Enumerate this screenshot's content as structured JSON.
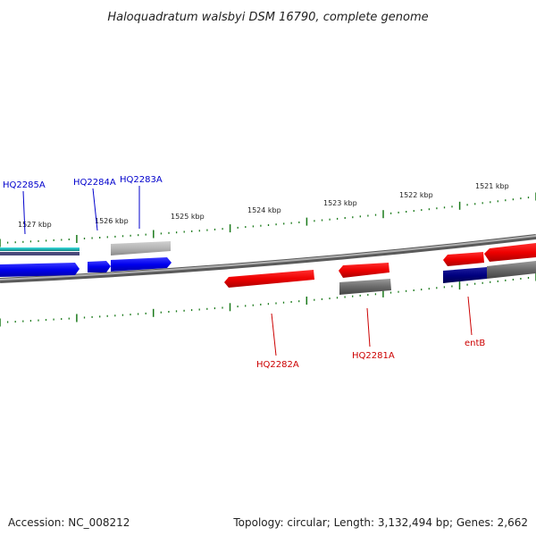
{
  "title": "Haloquadratum walsbyi DSM 16790, complete genome",
  "footer": {
    "accession": "Accession: NC_008212",
    "summary": "Topology: circular; Length: 3,132,494 bp; Genes: 2,662"
  },
  "colors": {
    "forward_dark": "#0000cc",
    "forward_cyan": "#20b0b0",
    "reverse_red": "#e00000",
    "grey_gene": "#707070",
    "navy_gene": "#000080",
    "tick_green": "#1a7a1a",
    "backbone": "#8a8a8a",
    "label_blue": "#0000cc",
    "label_red": "#cc0000"
  },
  "scale": {
    "unit": "kbp",
    "ticks": [
      {
        "label": "1527 kbp"
      },
      {
        "label": "1526 kbp"
      },
      {
        "label": "1525 kbp"
      },
      {
        "label": "1524 kbp"
      },
      {
        "label": "1523 kbp"
      },
      {
        "label": "1522 kbp"
      },
      {
        "label": "1521 kbp"
      }
    ]
  },
  "genes": {
    "forward_labels": [
      {
        "name": "HQ2285A"
      },
      {
        "name": "HQ2284A"
      },
      {
        "name": "HQ2283A"
      }
    ],
    "reverse_labels": [
      {
        "name": "HQ2282A"
      },
      {
        "name": "HQ2281A"
      },
      {
        "name": "entB"
      }
    ]
  }
}
